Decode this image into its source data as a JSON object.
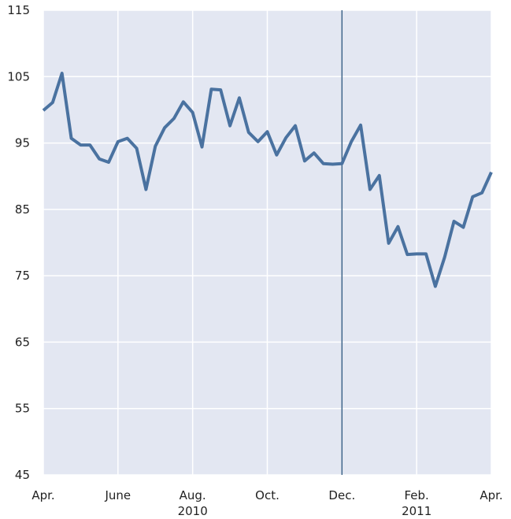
{
  "chart_data": {
    "type": "line",
    "x": [
      0,
      0.25,
      0.5,
      0.75,
      1,
      1.25,
      1.5,
      1.75,
      2,
      2.25,
      2.5,
      2.75,
      3,
      3.25,
      3.5,
      3.75,
      4,
      4.25,
      4.5,
      4.75,
      5,
      5.25,
      5.5,
      5.75,
      6,
      6.25,
      6.5,
      6.75,
      7,
      7.25,
      7.5,
      7.75,
      8,
      8.25,
      8.5,
      8.75,
      9,
      9.25,
      9.5,
      9.75,
      10,
      10.25,
      10.5,
      10.75,
      11,
      11.25,
      11.5,
      11.75,
      12
    ],
    "series": [
      {
        "color": "#4a72a0",
        "values": [
          99.9,
          101.1,
          105.5,
          95.7,
          94.7,
          94.7,
          92.6,
          92.1,
          95.2,
          95.7,
          94.2,
          88,
          94.5,
          97.3,
          98.7,
          101.2,
          99.6,
          94.4,
          103.1,
          103,
          97.6,
          101.8,
          96.6,
          95.2,
          96.7,
          93.2,
          95.8,
          97.6,
          92.3,
          93.5,
          91.9,
          91.8,
          91.9,
          95.2,
          97.7,
          88,
          90.1,
          79.9,
          82.4,
          78.2,
          78.3,
          78.3,
          73.4,
          77.8,
          83.2,
          82.3,
          86.9,
          87.5,
          90.6
        ]
      }
    ],
    "xlim": [
      0,
      12
    ],
    "xticks": [
      {
        "value": 0,
        "label": "Apr."
      },
      {
        "value": 2,
        "label": "June"
      },
      {
        "value": 4,
        "label": "Aug.\n2010"
      },
      {
        "value": 6,
        "label": "Oct."
      },
      {
        "value": 8,
        "label": "Dec."
      },
      {
        "value": 10,
        "label": "Feb.\n2011"
      },
      {
        "value": 12,
        "label": "Apr."
      }
    ],
    "ylim": [
      45,
      115
    ],
    "yticks": [
      45,
      55,
      65,
      75,
      85,
      95,
      105,
      115
    ],
    "vline": 8,
    "vline_color": "#3d6489",
    "grid": true,
    "background": "#e3e7f2"
  }
}
